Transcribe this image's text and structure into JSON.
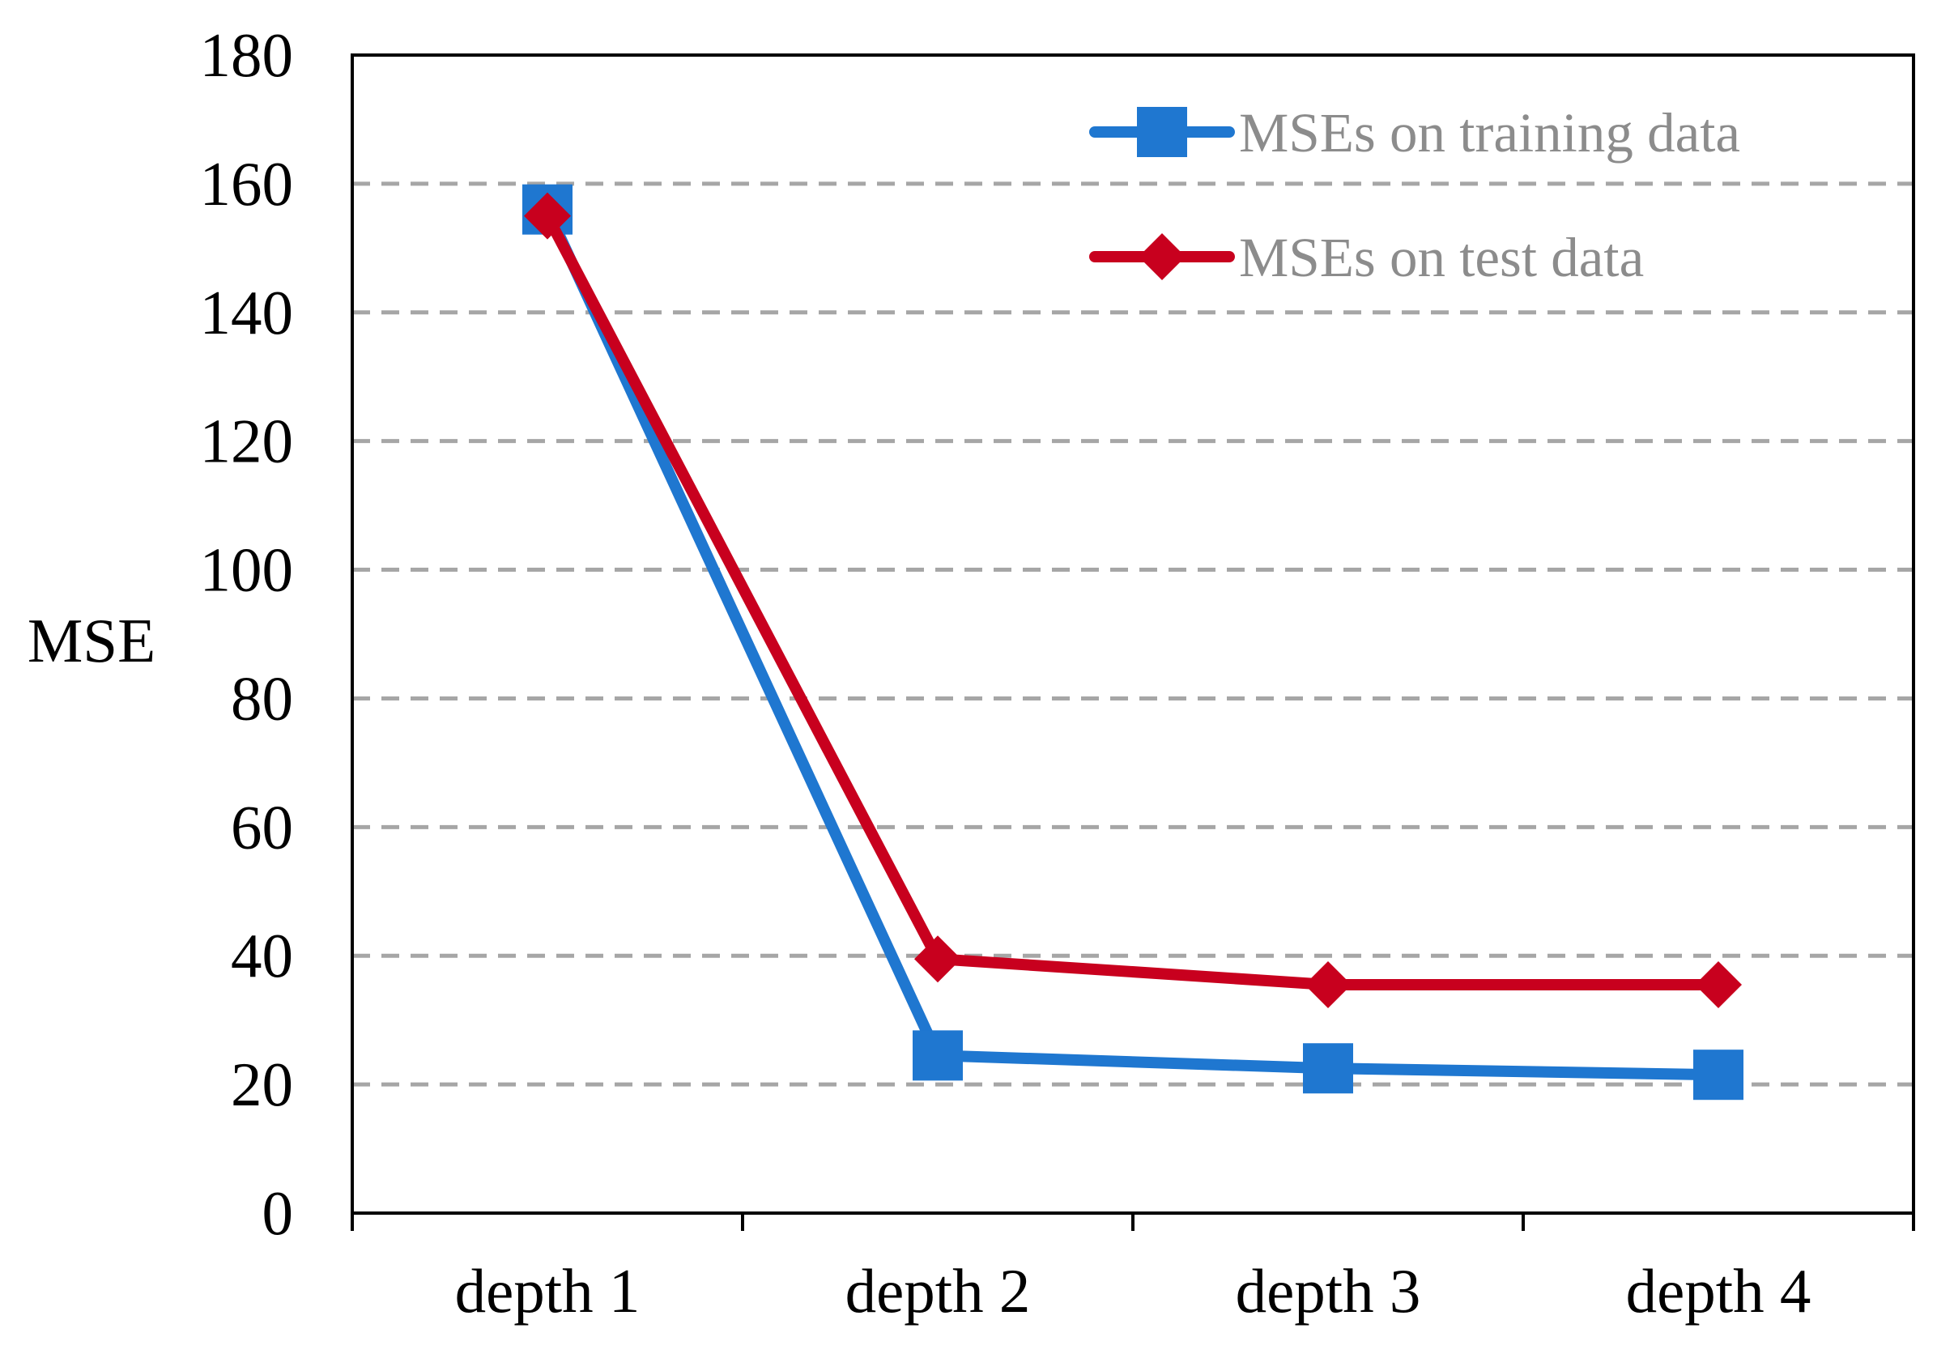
{
  "chart_data": {
    "type": "line",
    "title": "",
    "xlabel": "",
    "ylabel": "MSE",
    "categories": [
      "depth 1",
      "depth 2",
      "depth 3",
      "depth 4"
    ],
    "ylim": [
      0,
      180
    ],
    "yticks": [
      0,
      20,
      40,
      60,
      80,
      100,
      120,
      140,
      160,
      180
    ],
    "grid": "horizontal dashed",
    "legend": "top-right",
    "series": [
      {
        "name": "MSEs on training data",
        "color": "#1f77d0",
        "marker": "square",
        "values": [
          156,
          24.5,
          22.5,
          21.5
        ]
      },
      {
        "name": "MSEs on test data",
        "color": "#c8001e",
        "marker": "diamond",
        "values": [
          155,
          39.5,
          35.5,
          35.5
        ]
      }
    ]
  }
}
